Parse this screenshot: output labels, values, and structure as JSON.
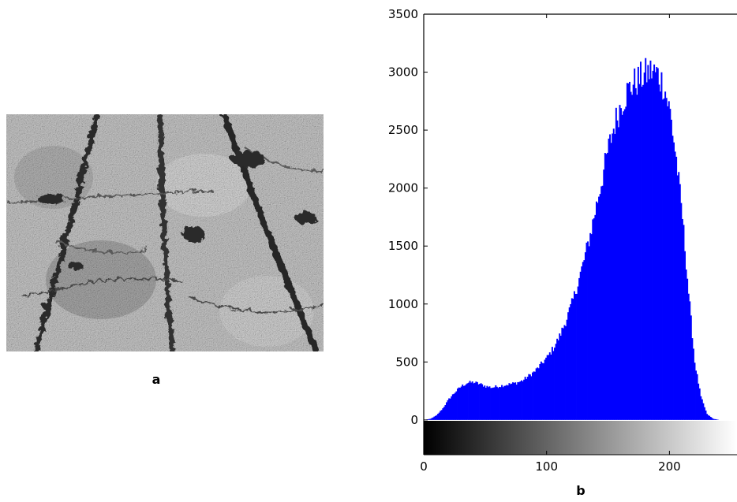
{
  "panel_a": {
    "label": "a",
    "image": "grayscale photo of cracked dry soil with dark furrows of vegetation"
  },
  "panel_b": {
    "label": "b"
  },
  "colors": {
    "bar_fill": "#0000ff",
    "axis": "#000000",
    "background": "#ffffff"
  },
  "chart_data": {
    "type": "bar",
    "title": "",
    "xlabel": "",
    "ylabel": "",
    "xlim": [
      0,
      255
    ],
    "ylim": [
      -300,
      3500
    ],
    "grid": false,
    "legend": "none",
    "colorbar": "grayscale gradient from 0 (black) to 255 (white)",
    "x_ticks": [
      0,
      100,
      200
    ],
    "y_ticks": [
      0,
      500,
      1000,
      1500,
      2000,
      2500,
      3000,
      3500
    ],
    "series": [
      {
        "profile_x": [
          0,
          5,
          10,
          15,
          20,
          25,
          30,
          35,
          40,
          45,
          50,
          55,
          60,
          65,
          70,
          75,
          80,
          85,
          90,
          95,
          100,
          105,
          110,
          115,
          120,
          125,
          130,
          135,
          140,
          145,
          150,
          155,
          160,
          165,
          170,
          175,
          180,
          185,
          190,
          195,
          200,
          205,
          210,
          215,
          220,
          225,
          230,
          235,
          240,
          245,
          250,
          255
        ],
        "profile_y": [
          0,
          10,
          40,
          100,
          180,
          240,
          290,
          320,
          325,
          310,
          290,
          280,
          290,
          300,
          310,
          320,
          340,
          380,
          420,
          480,
          540,
          620,
          720,
          850,
          1000,
          1180,
          1380,
          1600,
          1850,
          2100,
          2350,
          2560,
          2720,
          2830,
          2900,
          2940,
          2980,
          3010,
          2980,
          2880,
          2650,
          2250,
          1750,
          1100,
          500,
          200,
          50,
          10,
          0,
          0,
          0,
          0
        ]
      }
    ]
  }
}
